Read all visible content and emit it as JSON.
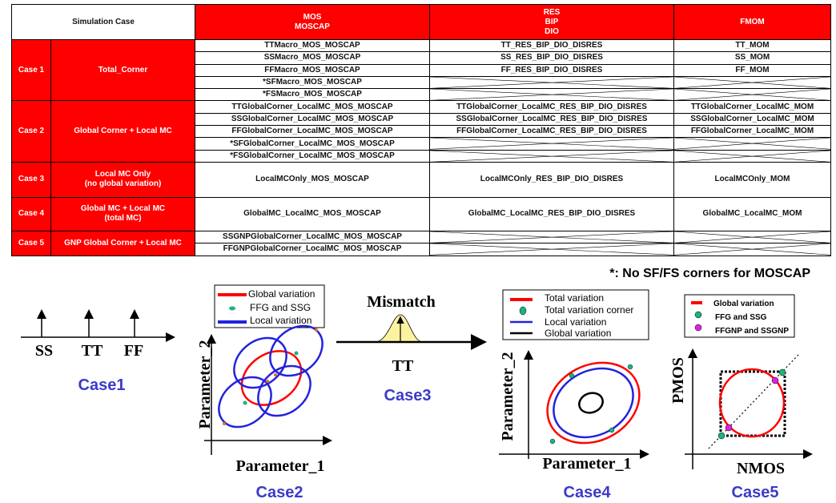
{
  "table": {
    "header": {
      "case": "Simulation Case",
      "mos": "MOS\nMOSCAP",
      "res": "RES\nBIP\nDIO",
      "fmom": "FMOM"
    },
    "cases": [
      {
        "id": "Case 1",
        "name": "Total_Corner",
        "rows": [
          [
            "TTMacro_MOS_MOSCAP",
            "TT_RES_BIP_DIO_DISRES",
            "TT_MOM"
          ],
          [
            "SSMacro_MOS_MOSCAP",
            "SS_RES_BIP_DIO_DISRES",
            "SS_MOM"
          ],
          [
            "FFMacro_MOS_MOSCAP",
            "FF_RES_BIP_DIO_DISRES",
            "FF_MOM"
          ],
          [
            "*SFMacro_MOS_MOSCAP",
            null,
            null
          ],
          [
            "*FSMacro_MOS_MOSCAP",
            null,
            null
          ]
        ]
      },
      {
        "id": "Case 2",
        "name": "Global Corner + Local MC",
        "rows": [
          [
            "TTGlobalCorner_LocalMC_MOS_MOSCAP",
            "TTGlobalCorner_LocalMC_RES_BIP_DIO_DISRES",
            "TTGlobalCorner_LocalMC_MOM"
          ],
          [
            "SSGlobalCorner_LocalMC_MOS_MOSCAP",
            "SSGlobalCorner_LocalMC_RES_BIP_DIO_DISRES",
            "SSGlobalCorner_LocalMC_MOM"
          ],
          [
            "FFGlobalCorner_LocalMC_MOS_MOSCAP",
            "FFGlobalCorner_LocalMC_RES_BIP_DIO_DISRES",
            "FFGlobalCorner_LocalMC_MOM"
          ],
          [
            "*SFGlobalCorner_LocalMC_MOS_MOSCAP",
            null,
            null
          ],
          [
            "*FSGlobalCorner_LocalMC_MOS_MOSCAP",
            null,
            null
          ]
        ]
      },
      {
        "id": "Case 3",
        "name": "Local MC Only\n(no global variation)",
        "rows": [
          [
            "LocalMCOnly_MOS_MOSCAP",
            "LocalMCOnly_RES_BIP_DIO_DISRES",
            "LocalMCOnly_MOM"
          ]
        ]
      },
      {
        "id": "Case 4",
        "name": "Global MC + Local MC\n(total MC)",
        "rows": [
          [
            "GlobalMC_LocalMC_MOS_MOSCAP",
            "GlobalMC_LocalMC_RES_BIP_DIO_DISRES",
            "GlobalMC_LocalMC_MOM"
          ]
        ]
      },
      {
        "id": "Case 5",
        "name": "GNP Global Corner + Local MC",
        "rows": [
          [
            "SSGNPGlobalCorner_LocalMC_MOS_MOSCAP",
            null,
            null
          ],
          [
            "FFGNPGlobalCorner_LocalMC_MOS_MOSCAP",
            null,
            null
          ]
        ]
      }
    ]
  },
  "footnote": "*: No SF/FS corners for MOSCAP",
  "case1": {
    "labels": [
      "SS",
      "TT",
      "FF"
    ],
    "title": "Case1"
  },
  "case2": {
    "legend": [
      "Global variation",
      "FFG and SSG",
      "Local variation"
    ],
    "xlabel": "Parameter_1",
    "ylabel": "Parameter_2",
    "title": "Case2"
  },
  "case3": {
    "top": "Mismatch",
    "label": "TT",
    "title": "Case3"
  },
  "case4": {
    "legend": [
      "Total variation",
      "Total variation corner",
      "Local variation",
      "Global variation"
    ],
    "xlabel": "Parameter_1",
    "ylabel": "Parameter_2",
    "title": "Case4"
  },
  "case5": {
    "legend": [
      "Global variation",
      "FFG and SSG",
      "FFGNP and SSGNP"
    ],
    "xlabel": "NMOS",
    "ylabel": "PMOS",
    "title": "Case5"
  },
  "colors": {
    "header_red": "#ff0000",
    "global": "#ff0000",
    "local": "#2222dd",
    "corner": "#1db37a",
    "gnp": "#e020e0",
    "case_label": "#3b3bc8",
    "gaussian": "#fbf3a0"
  }
}
